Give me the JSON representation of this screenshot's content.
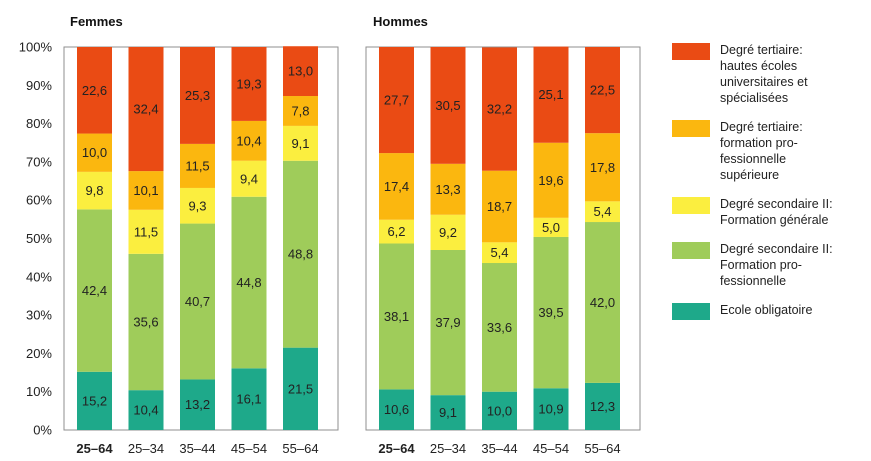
{
  "chart_data": {
    "type": "bar",
    "stacked": true,
    "ylim": [
      0,
      100
    ],
    "y_ticks": [
      "0%",
      "10%",
      "20%",
      "30%",
      "40%",
      "50%",
      "60%",
      "70%",
      "80%",
      "90%",
      "100%"
    ],
    "categories": [
      "25–64",
      "25–34",
      "35–44",
      "45–54",
      "55–64"
    ],
    "bold_category": "25–64",
    "legend_position": "right",
    "series": [
      {
        "name": "Ecole obligatoire",
        "color": "#1ea98a"
      },
      {
        "name": "Degré secondaire II:\nFormation pro-\nfessionnelle",
        "color": "#9fcc5a"
      },
      {
        "name": "Degré secondaire II:\nFormation générale",
        "color": "#fbee3f"
      },
      {
        "name": "Degré tertiaire:\nformation pro-\nfessionnelle\nsupérieure",
        "color": "#fbb70f"
      },
      {
        "name": "Degré tertiaire:\nhautes écoles\nuniversitaires et\nspécialisées",
        "color": "#ea4b14"
      }
    ],
    "panels": [
      {
        "title": "Femmes",
        "values": [
          [
            "15,2",
            "42,4",
            "9,8",
            "10,0",
            "22,6"
          ],
          [
            "10,4",
            "35,6",
            "11,5",
            "10,1",
            "32,4"
          ],
          [
            "13,2",
            "40,7",
            "9,3",
            "11,5",
            "25,3"
          ],
          [
            "16,1",
            "44,8",
            "9,4",
            "10,4",
            "19,3"
          ],
          [
            "21,5",
            "48,8",
            "9,1",
            "7,8",
            "13,0"
          ]
        ]
      },
      {
        "title": "Hommes",
        "values": [
          [
            "10,6",
            "38,1",
            "6,2",
            "17,4",
            "27,7"
          ],
          [
            "9,1",
            "37,9",
            "9,2",
            "13,3",
            "30,5"
          ],
          [
            "10,0",
            "33,6",
            "5,4",
            "18,7",
            "32,2"
          ],
          [
            "10,9",
            "39,5",
            "5,0",
            "19,6",
            "25,1"
          ],
          [
            "12,3",
            "42,0",
            "5,4",
            "17,8",
            "22,5"
          ]
        ]
      }
    ]
  }
}
